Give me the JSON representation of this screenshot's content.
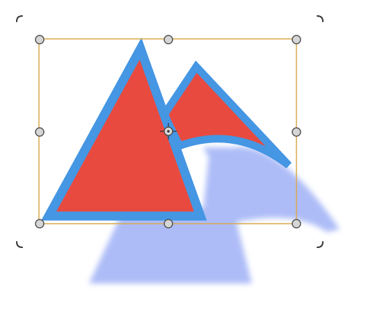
{
  "colors": {
    "selection_box": "#d9a94a",
    "handle_fill": "#d6d6d6",
    "handle_stroke": "#555555",
    "shape_fill": "#e84a3f",
    "shape_stroke": "#4596e3",
    "shadow": "#a9b9f7",
    "canvas_bracket": "#333333"
  },
  "icons": {
    "center_pivot": "crosshair-icon"
  }
}
